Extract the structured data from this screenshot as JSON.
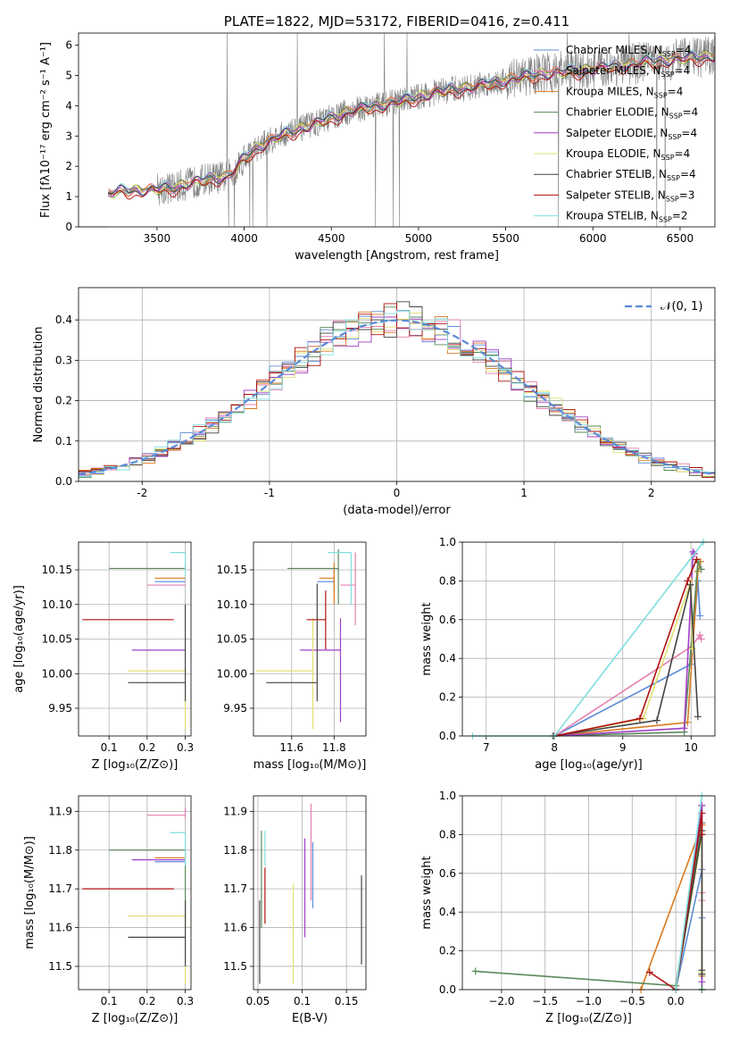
{
  "colors": {
    "Chabrier MILES": "#5b8bd6",
    "Salpeter MILES": "#e57fb0",
    "Kroupa MILES": "#d97a20",
    "Chabrier ELODIE": "#5a8a5a",
    "Salpeter ELODIE": "#a23fc5",
    "Kroupa ELODIE": "#e0e070",
    "Chabrier STELIB": "#444444",
    "Salpeter STELIB": "#b01010",
    "Kroupa STELIB": "#80dede",
    "spectrum": "#808080",
    "normal": "#5b8bd6"
  },
  "chart_data": [
    {
      "id": "spectrum",
      "type": "line",
      "title": "PLATE=1822, MJD=53172, FIBERID=0416, z=0.411",
      "xlabel": "wavelength [Angstrom, rest frame]",
      "ylabel": "Flux [fλ10⁻¹⁷ erg cm⁻² s⁻¹ A⁻¹]",
      "xlim": [
        3050,
        6700
      ],
      "ylim": [
        0,
        6.4
      ],
      "xticks": [
        3500,
        4000,
        4500,
        5000,
        5500,
        6000,
        6500
      ],
      "yticks": [
        0,
        1,
        2,
        3,
        4,
        5,
        6
      ],
      "continuum": {
        "x": [
          3220,
          3300,
          3400,
          3500,
          3600,
          3700,
          3800,
          3900,
          3950,
          4000,
          4100,
          4200,
          4300,
          4400,
          4500,
          4600,
          4700,
          4800,
          4900,
          5000,
          5100,
          5200,
          5300,
          5400,
          5500,
          5600,
          5700,
          5800,
          5900,
          6000,
          6100,
          6200,
          6300,
          6400,
          6500,
          6600,
          6700
        ],
        "y": [
          1.1,
          1.2,
          1.2,
          1.25,
          1.3,
          1.45,
          1.6,
          1.65,
          1.9,
          2.3,
          2.7,
          3.0,
          3.2,
          3.4,
          3.6,
          3.8,
          3.95,
          4.05,
          4.15,
          4.3,
          4.45,
          4.55,
          4.6,
          4.75,
          4.85,
          4.95,
          5.05,
          5.1,
          5.15,
          5.2,
          5.3,
          5.35,
          5.45,
          5.5,
          5.55,
          5.6,
          5.65
        ]
      },
      "series": [
        {
          "name": "Chabrier MILES, N",
          "sub": "SSP",
          "after": "=4"
        },
        {
          "name": "Salpeter MILES, N",
          "sub": "SSP",
          "after": "=4"
        },
        {
          "name": "Kroupa MILES, N",
          "sub": "SSP",
          "after": "=4"
        },
        {
          "name": "Chabrier ELODIE, N",
          "sub": "SSP",
          "after": "=4"
        },
        {
          "name": "Salpeter ELODIE, N",
          "sub": "SSP",
          "after": "=4"
        },
        {
          "name": "Kroupa ELODIE, N",
          "sub": "SSP",
          "after": "=4"
        },
        {
          "name": "Chabrier STELIB, N",
          "sub": "SSP",
          "after": "=4"
        },
        {
          "name": "Salpeter STELIB, N",
          "sub": "SSP",
          "after": "=3"
        },
        {
          "name": "Kroupa STELIB, N",
          "sub": "SSP",
          "after": "=2"
        }
      ],
      "legend": "top-right"
    },
    {
      "id": "residuals",
      "type": "line",
      "xlabel": "(data-model)/error",
      "ylabel": "Normed distribution",
      "xlim": [
        -2.5,
        2.5
      ],
      "ylim": [
        0,
        0.48
      ],
      "xticks": [
        -2,
        -1,
        0,
        1,
        2
      ],
      "yticks": [
        0.0,
        0.1,
        0.2,
        0.3,
        0.4
      ],
      "grid": true,
      "normal_label": "𝒩(0, 1)",
      "legend": "top-right"
    },
    {
      "id": "age_vs_Z",
      "type": "scatter",
      "xlabel": "Z [log₁₀(Z/Z⊙)]",
      "ylabel": "age  [log₁₀(age/yr)]",
      "xlim": [
        0.02,
        0.315
      ],
      "ylim": [
        9.91,
        10.19
      ],
      "xticks": [
        0.1,
        0.2,
        0.3
      ],
      "yticks": [
        9.95,
        10.0,
        10.05,
        10.1,
        10.15
      ],
      "grid": true,
      "points": [
        {
          "s": "Chabrier MILES",
          "x0": 0.22,
          "x1": 0.3,
          "y": 10.133,
          "y0": 10.133,
          "y1": 10.133
        },
        {
          "s": "Salpeter MILES",
          "x0": 0.2,
          "x1": 0.3,
          "y": 10.128,
          "y0": 10.128,
          "y1": 10.128
        },
        {
          "s": "Kroupa MILES",
          "x0": 0.22,
          "x1": 0.3,
          "y": 10.138,
          "y0": 10.138,
          "y1": 10.138
        },
        {
          "s": "Chabrier ELODIE",
          "x0": 0.1,
          "x1": 0.3,
          "y": 10.152,
          "y0": 10.15,
          "y1": 10.155
        },
        {
          "s": "Salpeter ELODIE",
          "x0": 0.16,
          "x1": 0.3,
          "y": 10.034,
          "y0": 10.034,
          "y1": 10.034
        },
        {
          "s": "Kroupa ELODIE",
          "x0": 0.15,
          "x1": 0.3,
          "y": 10.004,
          "y0": 9.92,
          "y1": 10.004
        },
        {
          "s": "Chabrier STELIB",
          "x0": 0.15,
          "x1": 0.3,
          "y": 9.987,
          "y0": 9.96,
          "y1": 10.1
        },
        {
          "s": "Salpeter STELIB",
          "x0": 0.03,
          "x1": 0.27,
          "y": 10.078,
          "y0": 10.078,
          "y1": 10.078
        },
        {
          "s": "Kroupa STELIB",
          "x0": 0.26,
          "x1": 0.3,
          "y": 10.175,
          "y0": 10.14,
          "y1": 10.175
        }
      ]
    },
    {
      "id": "age_vs_mass",
      "type": "scatter",
      "xlabel": "mass [log₁₀(M/M⊙)]",
      "xlim": [
        11.42,
        11.95
      ],
      "ylim": [
        9.91,
        10.19
      ],
      "xticks": [
        11.6,
        11.8
      ],
      "yticks": [
        9.95,
        10.0,
        10.05,
        10.1,
        10.15
      ],
      "grid": true,
      "points": [
        {
          "s": "Chabrier MILES",
          "x0": 11.72,
          "x1": 11.8,
          "y": 10.133,
          "y0": 10.12,
          "y1": 10.15
        },
        {
          "s": "Salpeter MILES",
          "x0": 11.83,
          "x1": 11.9,
          "y": 10.128,
          "y0": 10.07,
          "y1": 10.175
        },
        {
          "s": "Kroupa MILES",
          "x0": 11.73,
          "x1": 11.8,
          "y": 10.138,
          "y0": 10.1,
          "y1": 10.16
        },
        {
          "s": "Chabrier ELODIE",
          "x0": 11.58,
          "x1": 11.82,
          "y": 10.152,
          "y0": 10.1,
          "y1": 10.18
        },
        {
          "s": "Salpeter ELODIE",
          "x0": 11.64,
          "x1": 11.83,
          "y": 10.034,
          "y0": 9.93,
          "y1": 10.08
        },
        {
          "s": "Kroupa ELODIE",
          "x0": 11.43,
          "x1": 11.7,
          "y": 10.004,
          "y0": 9.92,
          "y1": 10.08
        },
        {
          "s": "Chabrier STELIB",
          "x0": 11.48,
          "x1": 11.72,
          "y": 9.987,
          "y0": 9.96,
          "y1": 10.13
        },
        {
          "s": "Salpeter STELIB",
          "x0": 11.67,
          "x1": 11.76,
          "y": 10.078,
          "y0": 10.035,
          "y1": 10.12
        },
        {
          "s": "Kroupa STELIB",
          "x0": 11.77,
          "x1": 11.88,
          "y": 10.175,
          "y0": 10.1,
          "y1": 10.175
        }
      ]
    },
    {
      "id": "weight_vs_age",
      "type": "line",
      "xlabel": "age  [log₁₀(age/yr)]",
      "ylabel": "mass weight",
      "xlim": [
        6.65,
        10.35
      ],
      "ylim": [
        0,
        1.0
      ],
      "xticks": [
        7,
        8,
        9,
        10
      ],
      "yticks": [
        0.0,
        0.2,
        0.4,
        0.6,
        0.8,
        1.0
      ],
      "grid": true,
      "series": [
        {
          "s": "Chabrier MILES",
          "x": [
            8.0,
            10.0,
            10.1,
            10.13
          ],
          "y": [
            0.0,
            0.37,
            0.8,
            0.62
          ]
        },
        {
          "s": "Salpeter MILES",
          "x": [
            8.0,
            10.0,
            10.13,
            10.15
          ],
          "y": [
            0.0,
            0.46,
            0.52,
            0.5
          ]
        },
        {
          "s": "Kroupa MILES",
          "x": [
            8.0,
            9.95,
            10.1,
            10.14
          ],
          "y": [
            0.0,
            0.07,
            0.85,
            0.9
          ]
        },
        {
          "s": "Chabrier ELODIE",
          "x": [
            8.0,
            9.9,
            10.1,
            10.15
          ],
          "y": [
            0.0,
            0.02,
            0.9,
            0.86
          ]
        },
        {
          "s": "Salpeter ELODIE",
          "x": [
            8.0,
            9.9,
            10.03,
            10.05
          ],
          "y": [
            0.0,
            0.04,
            0.95,
            0.94
          ]
        },
        {
          "s": "Kroupa ELODIE",
          "x": [
            8.0,
            9.3,
            10.0,
            10.02
          ],
          "y": [
            0.0,
            0.09,
            0.8,
            0.45
          ]
        },
        {
          "s": "Chabrier STELIB",
          "x": [
            7.98,
            9.5,
            9.99,
            10.1
          ],
          "y": [
            0.0,
            0.08,
            0.78,
            0.1
          ]
        },
        {
          "s": "Salpeter STELIB",
          "x": [
            8.0,
            9.25,
            9.95,
            10.08
          ],
          "y": [
            0.0,
            0.09,
            0.8,
            0.91
          ]
        },
        {
          "s": "Kroupa STELIB",
          "x": [
            6.8,
            8.0,
            10.18
          ],
          "y": [
            0.0,
            0.0,
            1.0
          ]
        }
      ]
    },
    {
      "id": "mass_vs_Z",
      "type": "scatter",
      "xlabel": "Z [log₁₀(Z/Z⊙)]",
      "ylabel": "mass [log₁₀(M/M⊙)]",
      "xlim": [
        0.02,
        0.315
      ],
      "ylim": [
        11.44,
        11.94
      ],
      "xticks": [
        0.1,
        0.2,
        0.3
      ],
      "yticks": [
        11.5,
        11.6,
        11.7,
        11.8,
        11.9
      ],
      "grid": true,
      "points": [
        {
          "s": "Chabrier MILES",
          "x0": 0.22,
          "x1": 0.3,
          "y": 11.77,
          "y0": 11.77,
          "y1": 11.77
        },
        {
          "s": "Salpeter MILES",
          "x0": 0.2,
          "x1": 0.3,
          "y": 11.89,
          "y0": 11.88,
          "y1": 11.91
        },
        {
          "s": "Kroupa MILES",
          "x0": 0.22,
          "x1": 0.3,
          "y": 11.78,
          "y0": 11.78,
          "y1": 11.78
        },
        {
          "s": "Chabrier ELODIE",
          "x0": 0.1,
          "x1": 0.3,
          "y": 11.8,
          "y0": 11.6,
          "y1": 11.8
        },
        {
          "s": "Salpeter ELODIE",
          "x0": 0.16,
          "x1": 0.3,
          "y": 11.775,
          "y0": 11.775,
          "y1": 11.775
        },
        {
          "s": "Kroupa ELODIE",
          "x0": 0.15,
          "x1": 0.3,
          "y": 11.63,
          "y0": 11.455,
          "y1": 11.63
        },
        {
          "s": "Chabrier STELIB",
          "x0": 0.15,
          "x1": 0.3,
          "y": 11.575,
          "y0": 11.5,
          "y1": 11.67
        },
        {
          "s": "Salpeter STELIB",
          "x0": 0.03,
          "x1": 0.27,
          "y": 11.7,
          "y0": 11.7,
          "y1": 11.7
        },
        {
          "s": "Kroupa STELIB",
          "x0": 0.26,
          "x1": 0.3,
          "y": 11.845,
          "y0": 11.76,
          "y1": 11.845
        }
      ]
    },
    {
      "id": "mass_vs_EBV",
      "type": "scatter",
      "xlabel": "E(B-V)",
      "xlim": [
        0.045,
        0.172
      ],
      "ylim": [
        11.44,
        11.94
      ],
      "xticks": [
        0.05,
        0.1,
        0.15
      ],
      "yticks": [
        11.5,
        11.6,
        11.7,
        11.8,
        11.9
      ],
      "grid": true,
      "points": [
        {
          "s": "Chabrier MILES",
          "x": 0.112,
          "y0": 11.65,
          "y1": 11.82
        },
        {
          "s": "Salpeter MILES",
          "x": 0.11,
          "y0": 11.67,
          "y1": 11.92
        },
        {
          "s": "Kroupa STELIB",
          "x": 0.058,
          "y0": 11.76,
          "y1": 11.85
        },
        {
          "s": "Chabrier ELODIE",
          "x": 0.054,
          "y0": 11.6,
          "y1": 11.85
        },
        {
          "s": "Salpeter ELODIE",
          "x": 0.103,
          "y0": 11.575,
          "y1": 11.83
        },
        {
          "s": "Kroupa ELODIE",
          "x": 0.09,
          "y0": 11.455,
          "y1": 11.715
        },
        {
          "s": "Chabrier STELIB",
          "x": 0.167,
          "y0": 11.505,
          "y1": 11.735
        },
        {
          "s": "Salpeter STELIB",
          "x": 0.058,
          "y0": 11.61,
          "y1": 11.755
        },
        {
          "s": "Chabrier STELIB",
          "x": 0.052,
          "y0": 11.455,
          "y1": 11.67
        }
      ]
    },
    {
      "id": "weight_vs_Z",
      "type": "line",
      "xlabel": "Z [log₁₀(Z/Z⊙)]",
      "ylabel": "mass weight",
      "xlim": [
        -2.45,
        0.45
      ],
      "ylim": [
        0,
        1.0
      ],
      "xticks": [
        -2.0,
        -1.5,
        -1.0,
        -0.5,
        0.0
      ],
      "yticks": [
        0.0,
        0.2,
        0.4,
        0.6,
        0.8,
        1.0
      ],
      "grid": true,
      "series": [
        {
          "s": "Chabrier MILES",
          "x": [
            0.0,
            0.3,
            0.3,
            0.3
          ],
          "y": [
            0.0,
            0.62,
            0.37,
            0.0
          ]
        },
        {
          "s": "Salpeter MILES",
          "x": [
            0.0,
            0.3,
            0.3,
            0.3
          ],
          "y": [
            0.0,
            0.95,
            0.5,
            0.46
          ]
        },
        {
          "s": "Kroupa MILES",
          "x": [
            -0.4,
            0.3,
            0.3
          ],
          "y": [
            0.0,
            0.85,
            0.07
          ]
        },
        {
          "s": "Chabrier ELODIE",
          "x": [
            -2.3,
            0.0,
            0.3,
            0.3
          ],
          "y": [
            0.095,
            0.02,
            0.86,
            0.0
          ]
        },
        {
          "s": "Salpeter ELODIE",
          "x": [
            0.0,
            0.3,
            0.3
          ],
          "y": [
            0.0,
            0.95,
            0.04
          ]
        },
        {
          "s": "Kroupa ELODIE",
          "x": [
            0.0,
            0.3,
            0.3
          ],
          "y": [
            0.0,
            0.8,
            0.09
          ]
        },
        {
          "s": "Chabrier STELIB",
          "x": [
            0.0,
            0.3,
            0.3,
            0.3
          ],
          "y": [
            0.0,
            0.82,
            0.1,
            0.08
          ]
        },
        {
          "s": "Salpeter STELIB",
          "x": [
            -0.3,
            0.0,
            0.3,
            0.3
          ],
          "y": [
            0.09,
            0.0,
            0.91,
            0.8
          ]
        },
        {
          "s": "Kroupa STELIB",
          "x": [
            0.0,
            0.3
          ],
          "y": [
            0.0,
            1.0
          ]
        }
      ]
    }
  ]
}
